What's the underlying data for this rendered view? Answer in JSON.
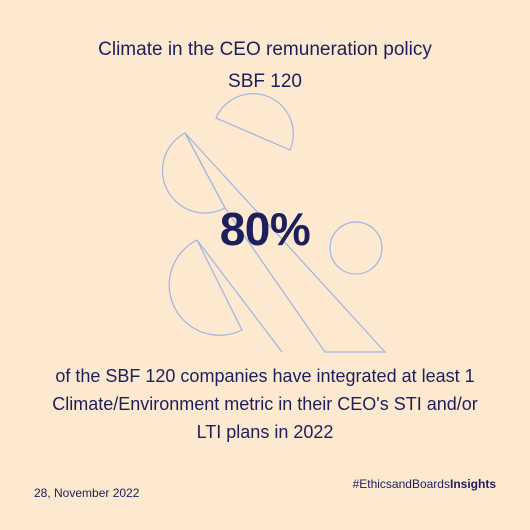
{
  "title": {
    "line1": "Climate in the CEO remuneration policy",
    "line2": "SBF 120"
  },
  "stat": {
    "value": "80%"
  },
  "description": {
    "line1": "of the SBF 120 companies have integrated at least 1",
    "line2": "Climate/Environment metric in their CEO's STI and/or",
    "line3": "LTI plans in 2022"
  },
  "footer": {
    "date": "28, November 2022",
    "hashtag_prefix": "#EthicsandBoards",
    "hashtag_suffix": "Insights"
  },
  "colors": {
    "background": "#fde9cf",
    "text": "#1c1f5c",
    "outline": "#9fb3e6"
  },
  "decoration": {
    "icon": "ampersand-outline-logo"
  }
}
